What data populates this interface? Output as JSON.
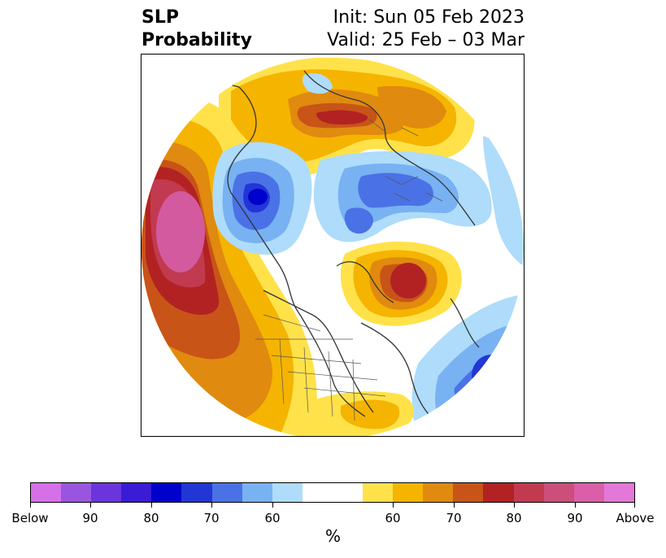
{
  "title": {
    "left_line1": "SLP",
    "left_line2": "Probability",
    "right_line1": "Init: Sun 05 Feb 2023",
    "right_line2": "Valid: 25 Feb – 03 Mar"
  },
  "colorbar": {
    "colors": [
      "#d670e8",
      "#9a55e0",
      "#6a35dc",
      "#3a1cd6",
      "#0000cc",
      "#2236d6",
      "#4a72e6",
      "#78b2f2",
      "#aedcfa",
      "#ffffff",
      "#ffffff",
      "#ffe24a",
      "#f5b400",
      "#e08a10",
      "#c85418",
      "#b22222",
      "#c23a50",
      "#cc4e7a",
      "#da5fa8",
      "#e478d8"
    ],
    "tick_labels": [
      "Below",
      "90",
      "80",
      "70",
      "60",
      "60",
      "70",
      "80",
      "90",
      "Above"
    ],
    "unit": "%"
  },
  "map": {
    "projection": "north-polar-stereographic",
    "colors": {
      "pink": "#d45aa0",
      "rose": "#c23a50",
      "red": "#b22222",
      "darkorange": "#c85418",
      "orange": "#e08a10",
      "amber": "#f5b400",
      "yellow": "#ffe24a",
      "lightblue": "#aedcfa",
      "skyblue": "#78b2f2",
      "blue": "#4a72e6",
      "royal": "#2236d6",
      "deepblue": "#0000cc"
    }
  }
}
